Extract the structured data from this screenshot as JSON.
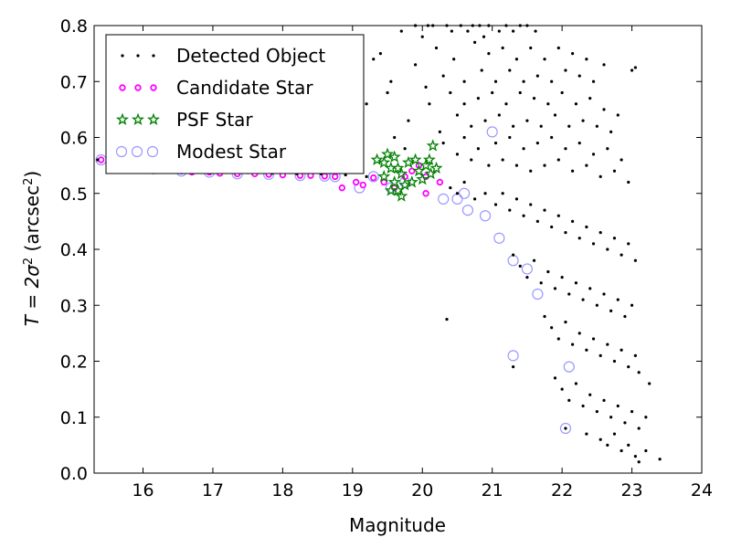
{
  "chart_data": {
    "type": "scatter",
    "xlabel": "Magnitude",
    "ylabel_main": "T = 2σ",
    "ylabel_sup1": "2",
    "ylabel_unit": " (arcsec",
    "ylabel_sup2": "2",
    "ylabel_close": ")",
    "xlim": [
      15.3,
      24
    ],
    "ylim": [
      0.0,
      0.8
    ],
    "xticks": [
      "16",
      "17",
      "18",
      "19",
      "20",
      "21",
      "22",
      "23",
      "24"
    ],
    "yticks": [
      "0.0",
      "0.1",
      "0.2",
      "0.3",
      "0.4",
      "0.5",
      "0.6",
      "0.7",
      "0.8"
    ],
    "grid": false,
    "legend_position": "top-left",
    "series": [
      {
        "name": "Detected Object",
        "marker": "dot",
        "color": "#000000",
        "points": [
          [
            15.35,
            0.56
          ],
          [
            15.6,
            0.555
          ],
          [
            16.05,
            0.548
          ],
          [
            16.45,
            0.542
          ],
          [
            16.8,
            0.54
          ],
          [
            17.15,
            0.538
          ],
          [
            17.5,
            0.537
          ],
          [
            17.85,
            0.536
          ],
          [
            18.2,
            0.535
          ],
          [
            18.55,
            0.535
          ],
          [
            18.9,
            0.533
          ],
          [
            19.2,
            0.53
          ],
          [
            19.7,
            0.79
          ],
          [
            19.9,
            0.8
          ],
          [
            20.0,
            0.78
          ],
          [
            20.08,
            0.8
          ],
          [
            20.15,
            0.8
          ],
          [
            20.35,
            0.8
          ],
          [
            20.42,
            0.79
          ],
          [
            20.55,
            0.8
          ],
          [
            20.65,
            0.79
          ],
          [
            20.72,
            0.8
          ],
          [
            20.82,
            0.8
          ],
          [
            20.88,
            0.78
          ],
          [
            20.95,
            0.8
          ],
          [
            21.1,
            0.79
          ],
          [
            21.2,
            0.8
          ],
          [
            21.3,
            0.79
          ],
          [
            21.4,
            0.8
          ],
          [
            21.5,
            0.8
          ],
          [
            21.62,
            0.79
          ],
          [
            19.3,
            0.74
          ],
          [
            19.4,
            0.75
          ],
          [
            19.55,
            0.7
          ],
          [
            19.9,
            0.73
          ],
          [
            20.05,
            0.69
          ],
          [
            20.2,
            0.76
          ],
          [
            20.3,
            0.71
          ],
          [
            20.45,
            0.74
          ],
          [
            20.6,
            0.7
          ],
          [
            20.75,
            0.77
          ],
          [
            20.85,
            0.72
          ],
          [
            20.95,
            0.75
          ],
          [
            21.05,
            0.7
          ],
          [
            21.15,
            0.76
          ],
          [
            21.25,
            0.72
          ],
          [
            21.35,
            0.74
          ],
          [
            21.45,
            0.7
          ],
          [
            21.55,
            0.76
          ],
          [
            21.65,
            0.71
          ],
          [
            21.75,
            0.74
          ],
          [
            21.85,
            0.7
          ],
          [
            21.95,
            0.76
          ],
          [
            22.05,
            0.72
          ],
          [
            22.15,
            0.75
          ],
          [
            22.25,
            0.71
          ],
          [
            22.35,
            0.74
          ],
          [
            22.45,
            0.7
          ],
          [
            22.6,
            0.73
          ],
          [
            23.0,
            0.72
          ],
          [
            23.05,
            0.725
          ],
          [
            19.2,
            0.66
          ],
          [
            19.5,
            0.68
          ],
          [
            19.8,
            0.63
          ],
          [
            20.1,
            0.66
          ],
          [
            20.25,
            0.61
          ],
          [
            20.4,
            0.68
          ],
          [
            20.5,
            0.64
          ],
          [
            20.6,
            0.66
          ],
          [
            20.7,
            0.62
          ],
          [
            20.8,
            0.67
          ],
          [
            20.9,
            0.63
          ],
          [
            21.0,
            0.68
          ],
          [
            21.1,
            0.64
          ],
          [
            21.2,
            0.66
          ],
          [
            21.3,
            0.62
          ],
          [
            21.4,
            0.68
          ],
          [
            21.5,
            0.63
          ],
          [
            21.6,
            0.67
          ],
          [
            21.7,
            0.62
          ],
          [
            21.8,
            0.66
          ],
          [
            21.9,
            0.64
          ],
          [
            22.0,
            0.68
          ],
          [
            22.1,
            0.62
          ],
          [
            22.2,
            0.66
          ],
          [
            22.3,
            0.63
          ],
          [
            22.4,
            0.67
          ],
          [
            22.5,
            0.62
          ],
          [
            22.6,
            0.65
          ],
          [
            22.7,
            0.61
          ],
          [
            22.8,
            0.64
          ],
          [
            19.6,
            0.6
          ],
          [
            19.75,
            0.58
          ],
          [
            20.3,
            0.59
          ],
          [
            20.5,
            0.57
          ],
          [
            20.6,
            0.6
          ],
          [
            20.7,
            0.56
          ],
          [
            20.8,
            0.58
          ],
          [
            20.95,
            0.55
          ],
          [
            21.05,
            0.59
          ],
          [
            21.15,
            0.56
          ],
          [
            21.25,
            0.6
          ],
          [
            21.35,
            0.55
          ],
          [
            21.45,
            0.58
          ],
          [
            21.55,
            0.54
          ],
          [
            21.65,
            0.59
          ],
          [
            21.75,
            0.55
          ],
          [
            21.85,
            0.6
          ],
          [
            21.95,
            0.56
          ],
          [
            22.05,
            0.58
          ],
          [
            22.15,
            0.54
          ],
          [
            22.25,
            0.59
          ],
          [
            22.35,
            0.55
          ],
          [
            22.45,
            0.57
          ],
          [
            22.55,
            0.53
          ],
          [
            22.65,
            0.58
          ],
          [
            22.75,
            0.54
          ],
          [
            22.85,
            0.56
          ],
          [
            22.95,
            0.52
          ],
          [
            20.4,
            0.51
          ],
          [
            20.5,
            0.5
          ],
          [
            20.6,
            0.52
          ],
          [
            20.75,
            0.49
          ],
          [
            20.9,
            0.5
          ],
          [
            21.05,
            0.48
          ],
          [
            21.15,
            0.5
          ],
          [
            21.25,
            0.47
          ],
          [
            21.35,
            0.49
          ],
          [
            21.45,
            0.46
          ],
          [
            21.55,
            0.48
          ],
          [
            21.65,
            0.45
          ],
          [
            21.75,
            0.47
          ],
          [
            21.85,
            0.44
          ],
          [
            21.95,
            0.46
          ],
          [
            22.05,
            0.43
          ],
          [
            22.15,
            0.45
          ],
          [
            22.25,
            0.42
          ],
          [
            22.35,
            0.44
          ],
          [
            22.45,
            0.41
          ],
          [
            22.55,
            0.43
          ],
          [
            22.65,
            0.4
          ],
          [
            22.75,
            0.42
          ],
          [
            22.85,
            0.39
          ],
          [
            22.95,
            0.41
          ],
          [
            23.05,
            0.38
          ],
          [
            21.3,
            0.39
          ],
          [
            21.4,
            0.37
          ],
          [
            21.5,
            0.35
          ],
          [
            21.6,
            0.38
          ],
          [
            21.7,
            0.34
          ],
          [
            21.8,
            0.36
          ],
          [
            21.9,
            0.33
          ],
          [
            22.0,
            0.35
          ],
          [
            22.1,
            0.32
          ],
          [
            22.2,
            0.34
          ],
          [
            22.3,
            0.31
          ],
          [
            22.4,
            0.33
          ],
          [
            22.5,
            0.3
          ],
          [
            22.6,
            0.32
          ],
          [
            22.7,
            0.29
          ],
          [
            22.8,
            0.31
          ],
          [
            22.9,
            0.28
          ],
          [
            23.0,
            0.3
          ],
          [
            20.35,
            0.275
          ],
          [
            21.3,
            0.19
          ],
          [
            21.75,
            0.28
          ],
          [
            21.85,
            0.26
          ],
          [
            21.95,
            0.24
          ],
          [
            22.05,
            0.27
          ],
          [
            22.15,
            0.23
          ],
          [
            22.25,
            0.25
          ],
          [
            22.35,
            0.22
          ],
          [
            22.45,
            0.24
          ],
          [
            22.55,
            0.21
          ],
          [
            22.65,
            0.23
          ],
          [
            22.75,
            0.2
          ],
          [
            22.85,
            0.22
          ],
          [
            22.95,
            0.19
          ],
          [
            23.05,
            0.21
          ],
          [
            23.1,
            0.18
          ],
          [
            21.9,
            0.17
          ],
          [
            22.0,
            0.15
          ],
          [
            22.1,
            0.13
          ],
          [
            22.2,
            0.16
          ],
          [
            22.3,
            0.12
          ],
          [
            22.4,
            0.14
          ],
          [
            22.5,
            0.11
          ],
          [
            22.6,
            0.13
          ],
          [
            22.7,
            0.1
          ],
          [
            22.8,
            0.12
          ],
          [
            22.9,
            0.09
          ],
          [
            23.0,
            0.11
          ],
          [
            23.1,
            0.08
          ],
          [
            23.25,
            0.16
          ],
          [
            23.2,
            0.1
          ],
          [
            22.05,
            0.08
          ],
          [
            22.35,
            0.07
          ],
          [
            22.55,
            0.06
          ],
          [
            22.65,
            0.05
          ],
          [
            22.75,
            0.07
          ],
          [
            22.85,
            0.04
          ],
          [
            22.95,
            0.05
          ],
          [
            23.05,
            0.03
          ],
          [
            23.1,
            0.02
          ],
          [
            23.2,
            0.04
          ],
          [
            23.4,
            0.025
          ]
        ]
      },
      {
        "name": "Candidate Star",
        "marker": "small-circle",
        "color": "#ff00ff",
        "points": [
          [
            15.4,
            0.56
          ],
          [
            15.75,
            0.552
          ],
          [
            15.85,
            0.548
          ],
          [
            16.15,
            0.545
          ],
          [
            16.35,
            0.542
          ],
          [
            16.55,
            0.54
          ],
          [
            16.7,
            0.538
          ],
          [
            16.95,
            0.538
          ],
          [
            17.1,
            0.536
          ],
          [
            17.35,
            0.535
          ],
          [
            17.6,
            0.535
          ],
          [
            17.8,
            0.534
          ],
          [
            18.0,
            0.533
          ],
          [
            18.25,
            0.532
          ],
          [
            18.4,
            0.532
          ],
          [
            18.6,
            0.531
          ],
          [
            18.75,
            0.53
          ],
          [
            18.85,
            0.51
          ],
          [
            19.05,
            0.52
          ],
          [
            19.15,
            0.515
          ],
          [
            19.3,
            0.528
          ],
          [
            19.45,
            0.52
          ],
          [
            19.6,
            0.51
          ],
          [
            19.75,
            0.53
          ],
          [
            19.85,
            0.54
          ],
          [
            19.95,
            0.55
          ],
          [
            20.05,
            0.53
          ],
          [
            20.25,
            0.52
          ],
          [
            20.05,
            0.5
          ]
        ]
      },
      {
        "name": "PSF Star",
        "marker": "star",
        "color": "#008000",
        "points": [
          [
            19.35,
            0.56
          ],
          [
            19.45,
            0.555
          ],
          [
            19.5,
            0.57
          ],
          [
            19.55,
            0.545
          ],
          [
            19.45,
            0.53
          ],
          [
            19.6,
            0.565
          ],
          [
            19.65,
            0.545
          ],
          [
            19.7,
            0.535
          ],
          [
            19.6,
            0.52
          ],
          [
            19.75,
            0.515
          ],
          [
            19.8,
            0.555
          ],
          [
            19.85,
            0.52
          ],
          [
            19.9,
            0.56
          ],
          [
            19.95,
            0.54
          ],
          [
            20.0,
            0.525
          ],
          [
            20.05,
            0.55
          ],
          [
            20.1,
            0.56
          ],
          [
            20.12,
            0.535
          ],
          [
            20.15,
            0.585
          ],
          [
            20.2,
            0.545
          ],
          [
            19.55,
            0.505
          ],
          [
            19.65,
            0.505
          ],
          [
            19.7,
            0.495
          ]
        ]
      },
      {
        "name": "Modest Star",
        "marker": "open-circle",
        "color": "#9999ff",
        "points": [
          [
            15.4,
            0.56
          ],
          [
            15.85,
            0.547
          ],
          [
            16.15,
            0.544
          ],
          [
            16.55,
            0.54
          ],
          [
            16.95,
            0.538
          ],
          [
            17.35,
            0.535
          ],
          [
            17.8,
            0.534
          ],
          [
            18.25,
            0.532
          ],
          [
            18.6,
            0.531
          ],
          [
            18.75,
            0.53
          ],
          [
            19.1,
            0.51
          ],
          [
            19.3,
            0.53
          ],
          [
            19.55,
            0.51
          ],
          [
            19.75,
            0.52
          ],
          [
            20.3,
            0.49
          ],
          [
            20.5,
            0.49
          ],
          [
            20.65,
            0.47
          ],
          [
            20.9,
            0.46
          ],
          [
            20.6,
            0.5
          ],
          [
            21.0,
            0.61
          ],
          [
            21.1,
            0.42
          ],
          [
            21.3,
            0.38
          ],
          [
            21.5,
            0.365
          ],
          [
            21.65,
            0.32
          ],
          [
            21.3,
            0.21
          ],
          [
            22.1,
            0.19
          ],
          [
            22.05,
            0.08
          ]
        ]
      }
    ]
  }
}
